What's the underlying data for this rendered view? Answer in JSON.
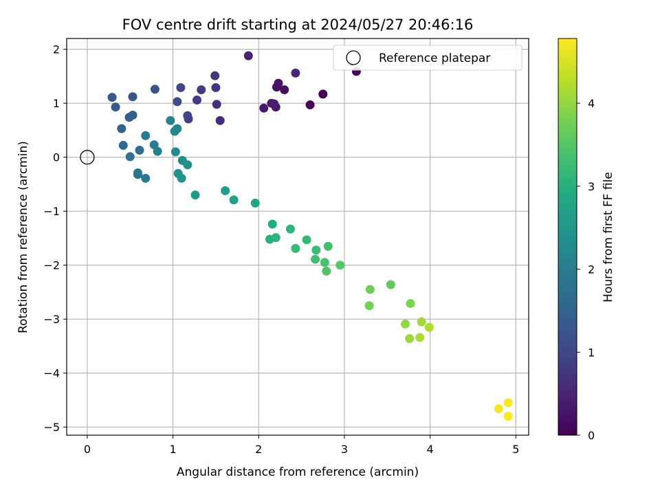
{
  "chart_data": {
    "type": "scatter",
    "title": "FOV centre drift starting at 2024/05/27 20:46:16",
    "xlabel": "Angular distance from reference (arcmin)",
    "ylabel": "Rotation from reference (arcmin)",
    "xlim": [
      -0.24,
      5.15
    ],
    "ylim": [
      -5.15,
      2.2
    ],
    "xticks": [
      0,
      1,
      2,
      3,
      4,
      5
    ],
    "yticks": [
      -5,
      -4,
      -3,
      -2,
      -1,
      0,
      1,
      2
    ],
    "xtick_labels": [
      "0",
      "1",
      "2",
      "3",
      "4",
      "5"
    ],
    "ytick_labels": [
      "−5",
      "−4",
      "−3",
      "−2",
      "−1",
      "0",
      "1",
      "2"
    ],
    "grid": true,
    "legend": {
      "label": "Reference platepar",
      "position": "top-right"
    },
    "reference_point": {
      "x": 0,
      "y": 0
    },
    "colorbar": {
      "label": "Hours from first FF file",
      "colormap": "viridis",
      "range": [
        0,
        4.78
      ],
      "ticks": [
        0,
        1,
        2,
        3,
        4
      ],
      "tick_labels": [
        "0",
        "1",
        "2",
        "3",
        "4"
      ]
    },
    "points": [
      {
        "x": 2.75,
        "y": 1.17,
        "c": 0.0
      },
      {
        "x": 2.6,
        "y": 0.97,
        "c": 0.05
      },
      {
        "x": 3.14,
        "y": 1.59,
        "c": 0.1
      },
      {
        "x": 2.3,
        "y": 1.25,
        "c": 0.18
      },
      {
        "x": 2.21,
        "y": 1.3,
        "c": 0.22
      },
      {
        "x": 2.23,
        "y": 1.37,
        "c": 0.25
      },
      {
        "x": 2.15,
        "y": 1.0,
        "c": 0.28
      },
      {
        "x": 2.2,
        "y": 0.93,
        "c": 0.32
      },
      {
        "x": 2.06,
        "y": 0.91,
        "c": 0.35
      },
      {
        "x": 2.18,
        "y": 0.99,
        "c": 0.4
      },
      {
        "x": 1.88,
        "y": 1.88,
        "c": 0.45
      },
      {
        "x": 2.43,
        "y": 1.56,
        "c": 0.5
      },
      {
        "x": 1.55,
        "y": 0.68,
        "c": 0.6
      },
      {
        "x": 1.51,
        "y": 0.98,
        "c": 0.66
      },
      {
        "x": 1.5,
        "y": 1.29,
        "c": 0.7
      },
      {
        "x": 1.49,
        "y": 1.51,
        "c": 0.75
      },
      {
        "x": 1.33,
        "y": 1.25,
        "c": 0.8
      },
      {
        "x": 1.28,
        "y": 1.06,
        "c": 0.85
      },
      {
        "x": 1.18,
        "y": 0.71,
        "c": 0.9
      },
      {
        "x": 1.17,
        "y": 0.77,
        "c": 0.95
      },
      {
        "x": 1.09,
        "y": 1.29,
        "c": 1.0
      },
      {
        "x": 1.05,
        "y": 1.03,
        "c": 1.1
      },
      {
        "x": 0.79,
        "y": 1.26,
        "c": 1.2
      },
      {
        "x": 0.53,
        "y": 1.12,
        "c": 1.25
      },
      {
        "x": 0.29,
        "y": 1.11,
        "c": 1.3
      },
      {
        "x": 0.33,
        "y": 0.93,
        "c": 1.35
      },
      {
        "x": 0.53,
        "y": 0.78,
        "c": 1.4
      },
      {
        "x": 0.49,
        "y": 0.74,
        "c": 1.45
      },
      {
        "x": 0.4,
        "y": 0.53,
        "c": 1.5
      },
      {
        "x": 0.42,
        "y": 0.22,
        "c": 1.6
      },
      {
        "x": 0.61,
        "y": 0.13,
        "c": 1.7
      },
      {
        "x": 0.5,
        "y": 0.01,
        "c": 1.75
      },
      {
        "x": 0.59,
        "y": -0.29,
        "c": 1.8
      },
      {
        "x": 0.59,
        "y": -0.32,
        "c": 1.85
      },
      {
        "x": 0.68,
        "y": -0.39,
        "c": 1.9
      },
      {
        "x": 0.68,
        "y": 0.4,
        "c": 1.95
      },
      {
        "x": 0.78,
        "y": 0.23,
        "c": 2.0
      },
      {
        "x": 0.82,
        "y": 0.11,
        "c": 2.05
      },
      {
        "x": 0.97,
        "y": 0.68,
        "c": 2.1
      },
      {
        "x": 1.05,
        "y": 0.53,
        "c": 2.15
      },
      {
        "x": 1.02,
        "y": 0.48,
        "c": 2.2
      },
      {
        "x": 1.03,
        "y": 0.1,
        "c": 2.25
      },
      {
        "x": 1.11,
        "y": -0.06,
        "c": 2.3
      },
      {
        "x": 1.17,
        "y": -0.14,
        "c": 2.35
      },
      {
        "x": 1.06,
        "y": -0.3,
        "c": 2.4
      },
      {
        "x": 1.1,
        "y": -0.39,
        "c": 2.45
      },
      {
        "x": 1.26,
        "y": -0.7,
        "c": 2.55
      },
      {
        "x": 1.61,
        "y": -0.62,
        "c": 2.65
      },
      {
        "x": 1.71,
        "y": -0.79,
        "c": 2.7
      },
      {
        "x": 1.96,
        "y": -0.85,
        "c": 2.8
      },
      {
        "x": 2.16,
        "y": -1.24,
        "c": 2.9
      },
      {
        "x": 2.13,
        "y": -1.52,
        "c": 3.0
      },
      {
        "x": 2.2,
        "y": -1.49,
        "c": 3.05
      },
      {
        "x": 2.37,
        "y": -1.33,
        "c": 3.1
      },
      {
        "x": 2.56,
        "y": -1.53,
        "c": 3.15
      },
      {
        "x": 2.43,
        "y": -1.69,
        "c": 3.2
      },
      {
        "x": 2.67,
        "y": -1.72,
        "c": 3.25
      },
      {
        "x": 2.66,
        "y": -1.89,
        "c": 3.3
      },
      {
        "x": 2.81,
        "y": -1.65,
        "c": 3.35
      },
      {
        "x": 2.77,
        "y": -1.95,
        "c": 3.4
      },
      {
        "x": 2.79,
        "y": -2.11,
        "c": 3.45
      },
      {
        "x": 2.95,
        "y": -2.0,
        "c": 3.5
      },
      {
        "x": 3.54,
        "y": -2.36,
        "c": 3.6
      },
      {
        "x": 3.3,
        "y": -2.45,
        "c": 3.7
      },
      {
        "x": 3.29,
        "y": -2.75,
        "c": 3.75
      },
      {
        "x": 3.77,
        "y": -2.71,
        "c": 3.85
      },
      {
        "x": 3.71,
        "y": -3.09,
        "c": 4.0
      },
      {
        "x": 3.76,
        "y": -3.36,
        "c": 4.05
      },
      {
        "x": 3.9,
        "y": -3.05,
        "c": 4.1
      },
      {
        "x": 3.88,
        "y": -3.34,
        "c": 4.15
      },
      {
        "x": 3.99,
        "y": -3.15,
        "c": 4.2
      },
      {
        "x": 4.8,
        "y": -4.66,
        "c": 4.7
      },
      {
        "x": 4.91,
        "y": -4.55,
        "c": 4.75
      },
      {
        "x": 4.91,
        "y": -4.8,
        "c": 4.78
      }
    ]
  }
}
